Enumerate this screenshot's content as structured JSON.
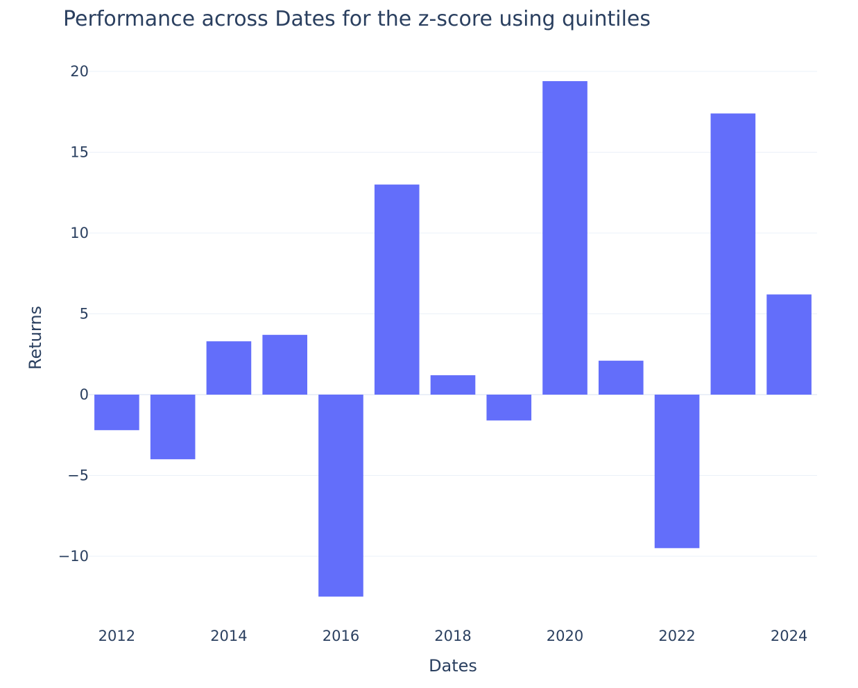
{
  "chart_data": {
    "type": "bar",
    "title": "Performance across Dates for the z-score using quintiles",
    "xlabel": "Dates",
    "ylabel": "Returns",
    "x": [
      "2012",
      "2013",
      "2014",
      "2015",
      "2016",
      "2017",
      "2018",
      "2019",
      "2020",
      "2021",
      "2022",
      "2023",
      "2024"
    ],
    "values": [
      -2.2,
      -4.0,
      3.3,
      3.7,
      -12.5,
      13.0,
      1.2,
      -1.6,
      19.4,
      2.1,
      -9.5,
      17.4,
      6.2
    ],
    "x_tick_labels": [
      "2012",
      "2014",
      "2016",
      "2018",
      "2020",
      "2022",
      "2024"
    ],
    "y_tick_values": [
      20,
      15,
      10,
      5,
      0,
      -5,
      -10
    ],
    "y_tick_labels": [
      "20",
      "15",
      "10",
      "5",
      "0",
      "−5",
      "−10"
    ],
    "ylim": [
      -13.5,
      21.0
    ],
    "grid": true,
    "bar_color": "#636efa",
    "grid_color": "#ebf0f8",
    "text_color": "#2a3f5f"
  }
}
